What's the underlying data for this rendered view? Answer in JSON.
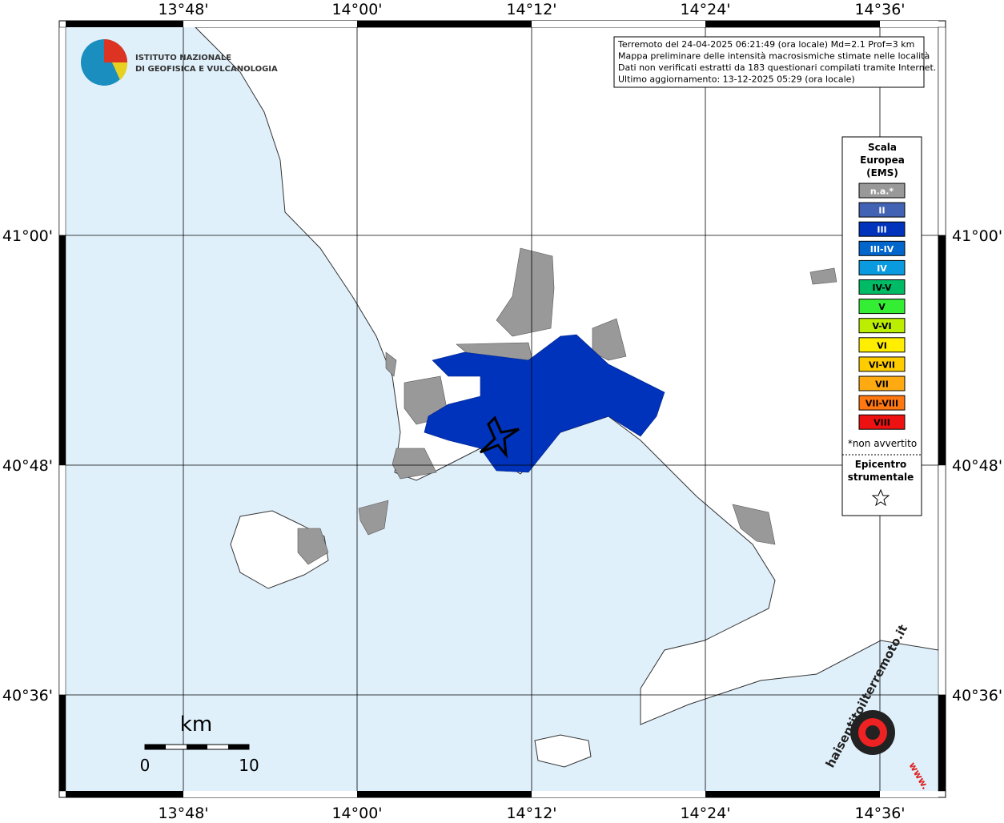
{
  "header": {
    "logo_line1": "ISTITUTO NAZIONALE",
    "logo_line2": "DI GEOFISICA E VULCANOLOGIA"
  },
  "info": [
    "Terremoto del 24-04-2025 06:21:49 (ora locale) Md=2.1 Prof=3 km",
    "Mappa preliminare delle intensità macrosismiche stimate nelle località",
    "Dati non verificati estratti da 183 questionari compilati tramite Internet.",
    "Ultimo aggiornamento: 13-12-2025 05:29 (ora locale)"
  ],
  "frame": {
    "longitudes": [
      "13°48'",
      "14°00'",
      "14°12'",
      "14°24'",
      "14°36'"
    ],
    "latitudes": [
      "41°00'",
      "40°48'",
      "40°36'"
    ]
  },
  "legend": {
    "title": [
      "Scala",
      "Europea",
      "(EMS)"
    ],
    "items": [
      {
        "label": "n.a.*",
        "color": "#999999"
      },
      {
        "label": "II",
        "color": "#4262b3"
      },
      {
        "label": "III",
        "color": "#0033bb"
      },
      {
        "label": "III-IV",
        "color": "#0066cc"
      },
      {
        "label": "IV",
        "color": "#0a9ae0"
      },
      {
        "label": "IV-V",
        "color": "#00bb66"
      },
      {
        "label": "V",
        "color": "#33ee33"
      },
      {
        "label": "V-VI",
        "color": "#bbee00"
      },
      {
        "label": "VI",
        "color": "#ffee00"
      },
      {
        "label": "VI-VII",
        "color": "#ffcc00"
      },
      {
        "label": "VII",
        "color": "#ffaa11"
      },
      {
        "label": "VII-VIII",
        "color": "#ff7711"
      },
      {
        "label": "VIII",
        "color": "#ee1111"
      }
    ],
    "note": "*non avvertito",
    "epicenter": [
      "Epicentro",
      "strumentale"
    ]
  },
  "scale_bar": {
    "unit": "km",
    "start": "0",
    "end": "10"
  },
  "watermark": {
    "site": "haisentitoilterremoto.it",
    "prefix": "www."
  }
}
